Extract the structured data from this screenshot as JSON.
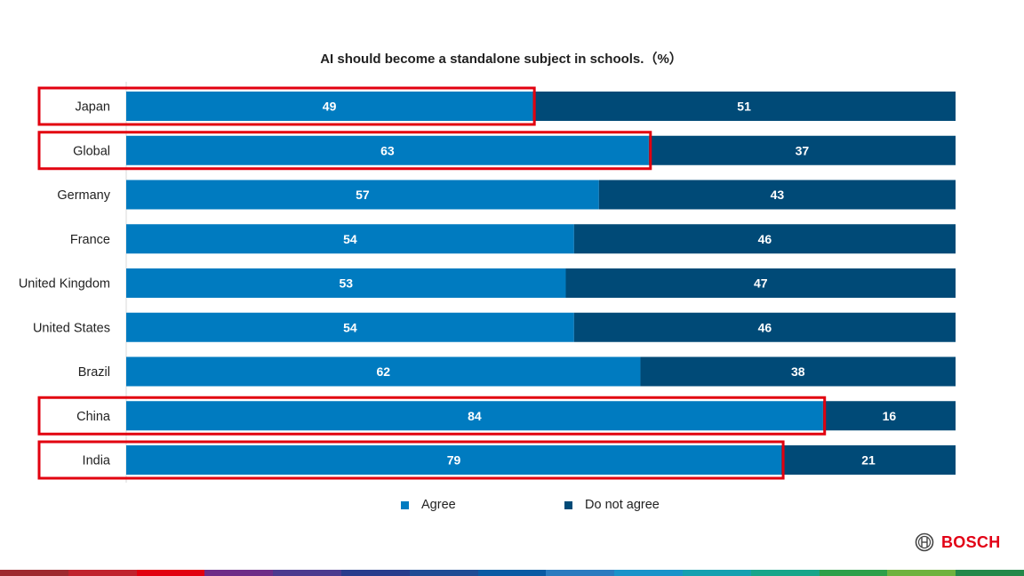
{
  "colors": {
    "agree": "#007bc0",
    "disagree": "#004a77",
    "highlight": "#e2000f",
    "brand": "#e20015"
  },
  "chart_data": {
    "type": "bar",
    "orientation": "horizontal",
    "stacked": true,
    "title": "AI should become a standalone subject in schools.（%）",
    "categories": [
      "Japan",
      "Global",
      "Germany",
      "France",
      "United Kingdom",
      "United States",
      "Brazil",
      "China",
      "India"
    ],
    "series": [
      {
        "name": "Agree",
        "values": [
          49,
          63,
          57,
          54,
          53,
          54,
          62,
          84,
          79
        ]
      },
      {
        "name": "Do not agree",
        "values": [
          51,
          37,
          43,
          46,
          47,
          46,
          38,
          16,
          21
        ]
      }
    ],
    "xlim": [
      0,
      100
    ],
    "highlighted": [
      "Japan",
      "Global",
      "China",
      "India"
    ],
    "legend": "bottom",
    "grid": false
  },
  "legend": {
    "agree_label": "Agree",
    "disagree_label": "Do not agree"
  },
  "brand": {
    "name": "BOSCH"
  },
  "footer_colors": [
    "#9e2a2f",
    "#c0222d",
    "#e2000f",
    "#6d2c87",
    "#4b3a8f",
    "#283c8c",
    "#1f4b94",
    "#0a5aa3",
    "#2b7bbf",
    "#1a93c9",
    "#16a0b0",
    "#18a58a",
    "#2e9f4a",
    "#6fb23f",
    "#23884a"
  ]
}
